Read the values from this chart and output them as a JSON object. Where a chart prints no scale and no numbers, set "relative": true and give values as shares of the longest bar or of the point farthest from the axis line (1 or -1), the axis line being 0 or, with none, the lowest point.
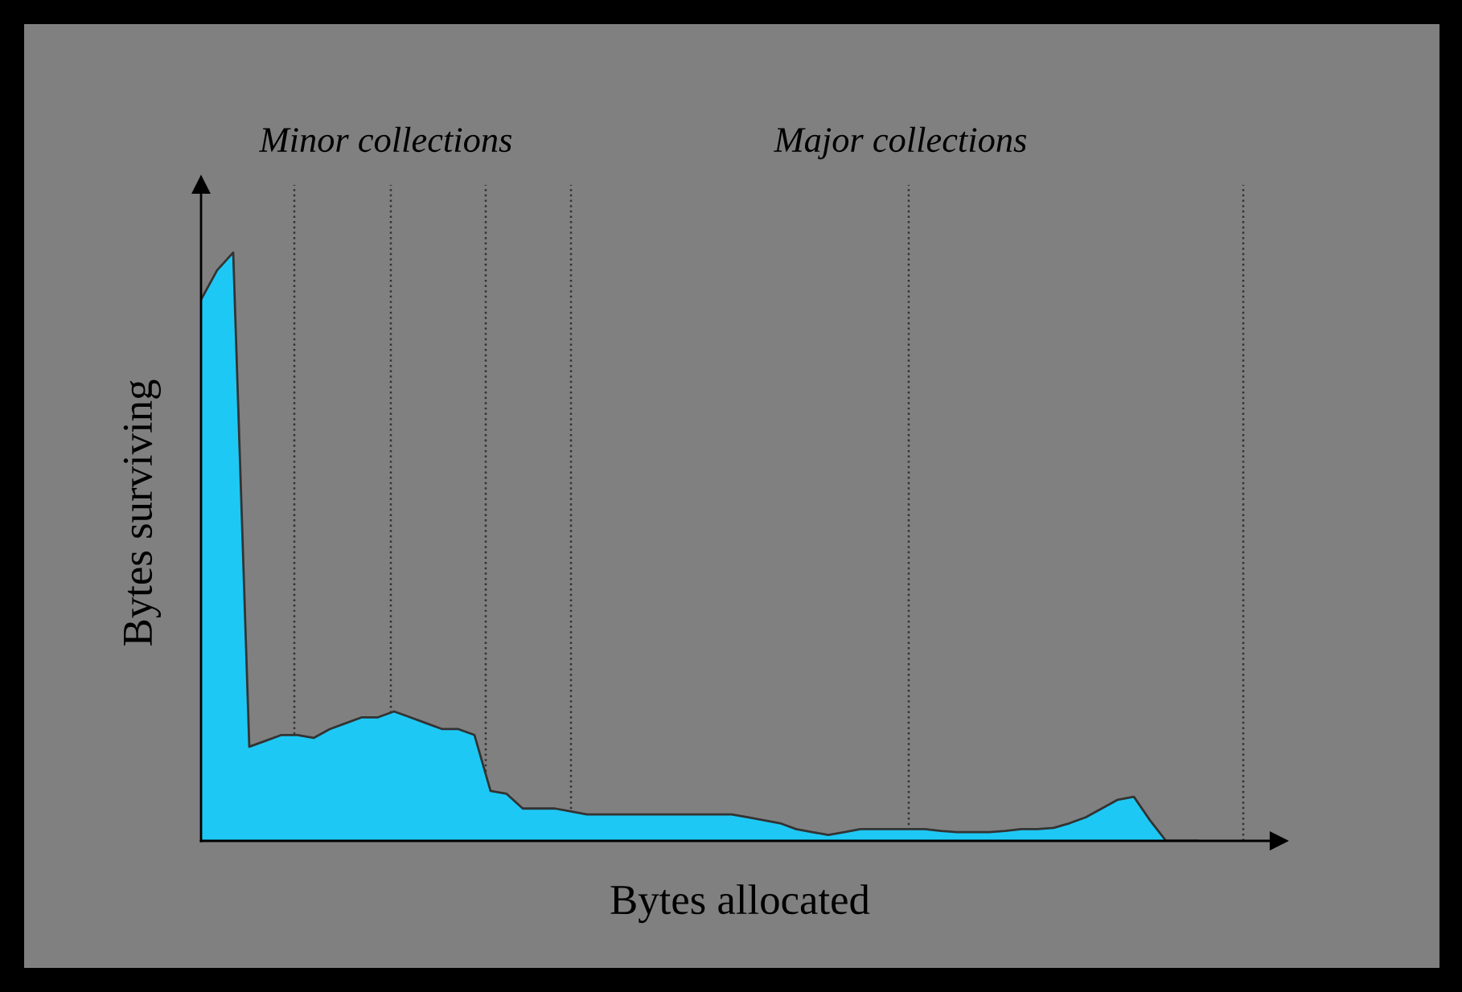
{
  "chart_data": {
    "type": "area",
    "relative": true,
    "xlabel": "Bytes allocated",
    "ylabel": "Bytes surviving",
    "categories": [
      null,
      null,
      null,
      null,
      null,
      null,
      null,
      null,
      null,
      null,
      null,
      null,
      null,
      null,
      null,
      null,
      null,
      null,
      null,
      null,
      null,
      null,
      null,
      null,
      null,
      null,
      null,
      null,
      null,
      null,
      null,
      null,
      null,
      null,
      null,
      null,
      null,
      null,
      null,
      null,
      null,
      null,
      null,
      null,
      null,
      null,
      null,
      null,
      null,
      null,
      null,
      null,
      null,
      null,
      null,
      null,
      null,
      null,
      null,
      null,
      null,
      null,
      null,
      null,
      null,
      null,
      null,
      null
    ],
    "series": [
      {
        "color": "#1ec8f5",
        "values": [
          0.92,
          0.97,
          1.0,
          0.16,
          0.17,
          0.18,
          0.18,
          0.175,
          0.19,
          0.2,
          0.21,
          0.21,
          0.22,
          0.21,
          0.2,
          0.19,
          0.19,
          0.18,
          0.085,
          0.08,
          0.055,
          0.055,
          0.055,
          0.05,
          0.045,
          0.045,
          0.045,
          0.045,
          0.045,
          0.045,
          0.045,
          0.045,
          0.045,
          0.045,
          0.04,
          0.035,
          0.03,
          0.02,
          0.015,
          0.01,
          0.015,
          0.02,
          0.02,
          0.02,
          0.02,
          0.02,
          0.017,
          0.015,
          0.015,
          0.015,
          0.017,
          0.02,
          0.02,
          0.022,
          0.03,
          0.04,
          0.055,
          0.07,
          0.075,
          0.035,
          0.0,
          0.0,
          0.0,
          null,
          null,
          null,
          null,
          null
        ]
      }
    ],
    "annotations": [
      "Minor collections",
      "Major collections"
    ],
    "grid": "x",
    "legend": false
  }
}
